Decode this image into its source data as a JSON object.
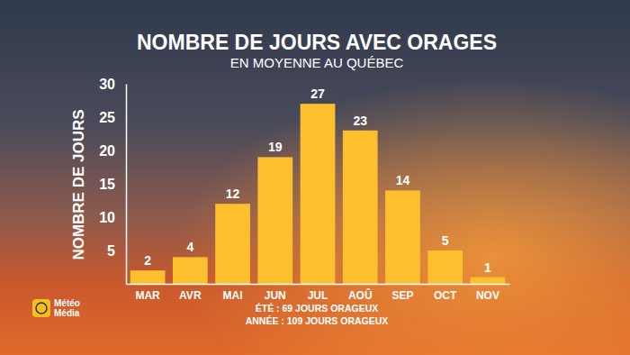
{
  "chart_data": {
    "type": "bar",
    "title": "NOMBRE DE JOURS AVEC ORAGES",
    "subtitle": "EN MOYENNE AU QUÉBEC",
    "y_label": "NOMBRE DE JOURS",
    "categories": [
      "MAR",
      "AVR",
      "MAI",
      "JUN",
      "JUL",
      "AOÛ",
      "SEP",
      "OCT",
      "NOV"
    ],
    "values": [
      2,
      4,
      12,
      19,
      27,
      23,
      14,
      5,
      1
    ],
    "color": "#fcc02e",
    "ylim": [
      0,
      30
    ],
    "yticks": [
      5,
      10,
      15,
      20,
      25,
      30
    ],
    "grid": false,
    "data_labels": true,
    "annotations": [
      "ÉTÉ : 69 JOURS ORAGEUX",
      "ANNÉE : 109 JOURS ORAGEUX"
    ],
    "logo": [
      "Météo",
      "Média"
    ]
  }
}
